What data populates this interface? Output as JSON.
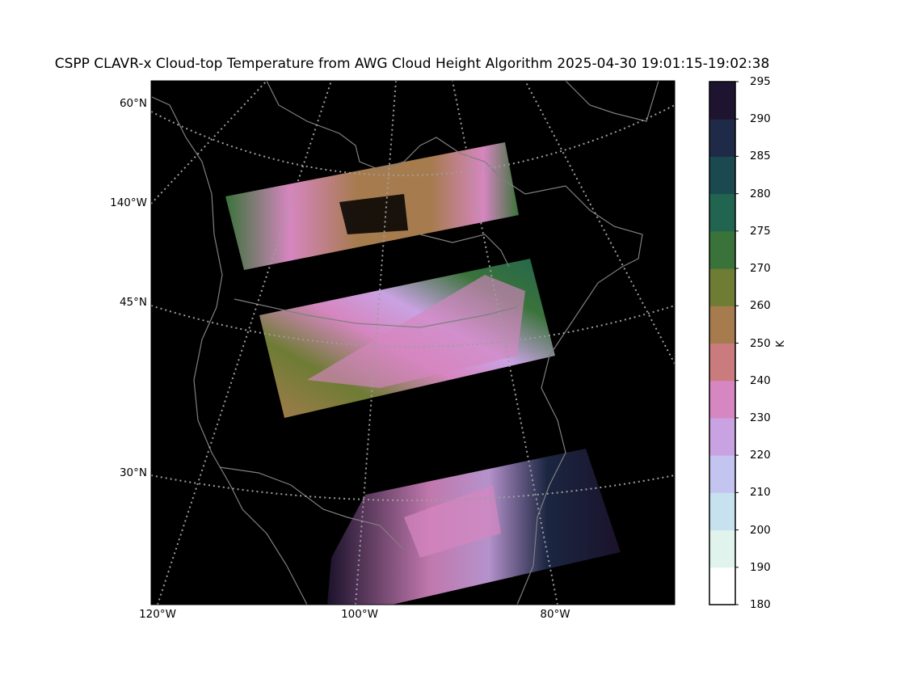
{
  "title": "CSPP CLAVR-x Cloud-top Temperature from AWG Cloud Height Algorithm 2025-04-30 19:01:15-19:02:38",
  "map": {
    "background": "#000000",
    "coastline_color": "#7f7f7f",
    "grid_color": "#9e9e9e",
    "lat_labels": [
      "60°N",
      "140°W",
      "45°N",
      "30°N"
    ],
    "lon_labels": [
      "120°W",
      "100°W",
      "80°W"
    ]
  },
  "colorbar": {
    "unit": "K",
    "ticks": [
      "180",
      "190",
      "200",
      "210",
      "220",
      "230",
      "240",
      "250",
      "260",
      "270",
      "275",
      "280",
      "285",
      "290",
      "295"
    ],
    "bin_colors": [
      "#ffffff",
      "#e0f3ec",
      "#c6e2ee",
      "#c4c4f0",
      "#c9a2e2",
      "#d686c0",
      "#c97b7d",
      "#a67b4e",
      "#6e7c34",
      "#3a733a",
      "#216550",
      "#1a4a50",
      "#1e2a48",
      "#1e1430"
    ]
  },
  "chart_data": {
    "type": "heatmap",
    "title": "CSPP CLAVR-x Cloud-top Temperature from AWG Cloud Height Algorithm 2025-04-30 19:01:15-19:02:38",
    "variable": "Cloud-top Temperature",
    "unit": "K",
    "color_levels": [
      180,
      190,
      200,
      210,
      220,
      230,
      240,
      250,
      260,
      270,
      275,
      280,
      285,
      290,
      295
    ],
    "lat_gridlines": [
      "60°N",
      "45°N",
      "30°N"
    ],
    "lon_gridlines": [
      "140°W",
      "120°W",
      "100°W",
      "80°W"
    ],
    "swaths": 3
  }
}
